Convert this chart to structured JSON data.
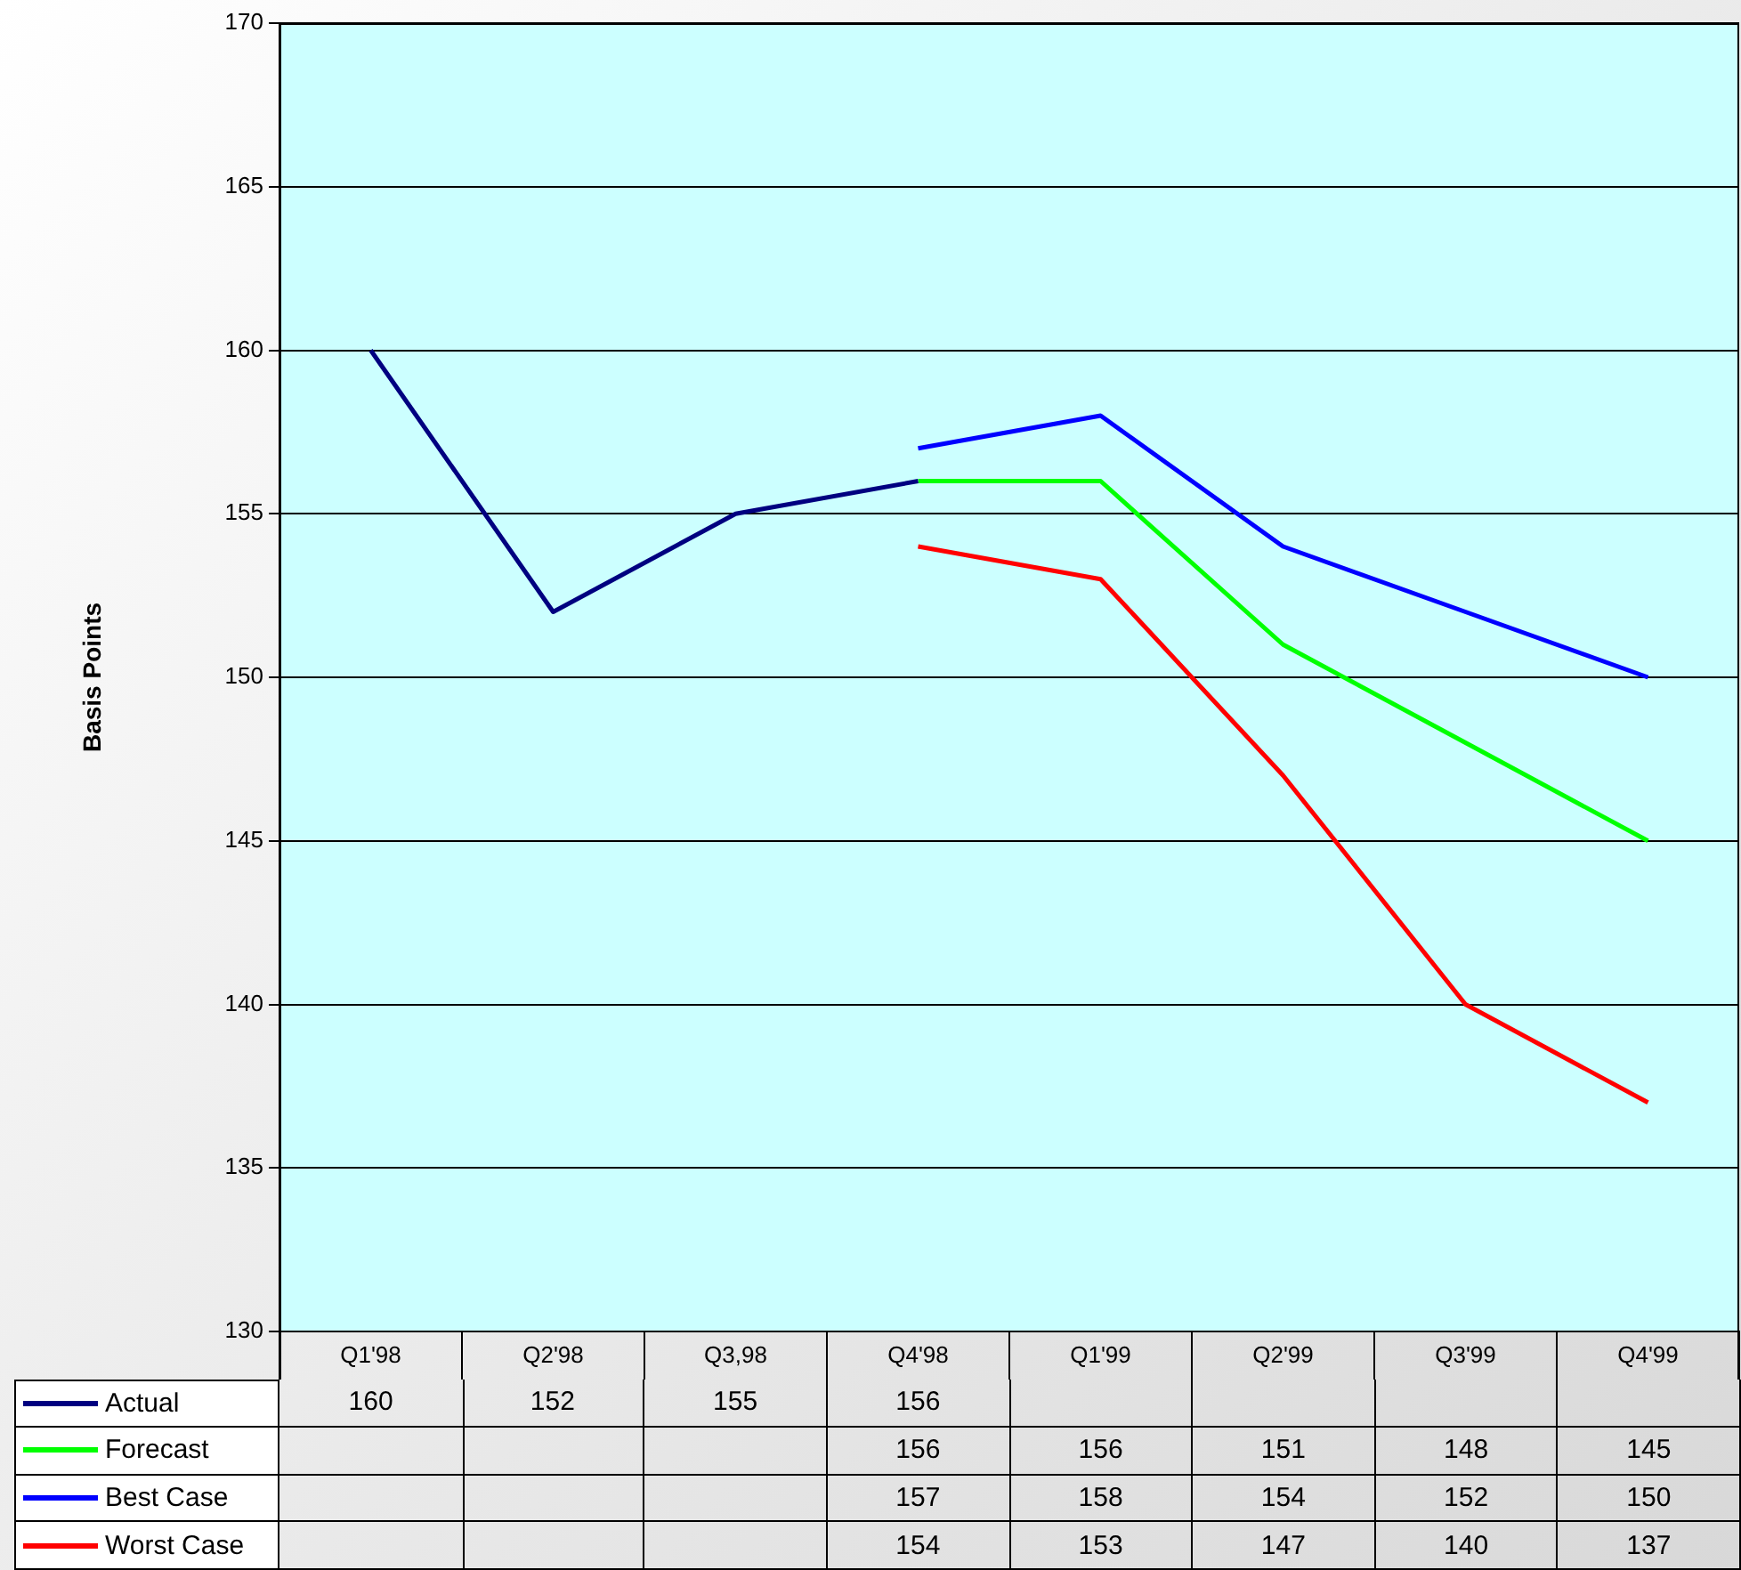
{
  "chart_data": {
    "type": "line",
    "ylabel": "Basis Points",
    "categories": [
      "Q1'98",
      "Q2'98",
      "Q3,98",
      "Q4'98",
      "Q1'99",
      "Q2'99",
      "Q3'99",
      "Q4'99"
    ],
    "series": [
      {
        "name": "Actual",
        "color": "#000080",
        "values": [
          160,
          152,
          155,
          156,
          null,
          null,
          null,
          null
        ]
      },
      {
        "name": "Forecast",
        "color": "#00ff00",
        "values": [
          null,
          null,
          null,
          156,
          156,
          151,
          148,
          145
        ]
      },
      {
        "name": "Best Case",
        "color": "#0000ff",
        "values": [
          null,
          null,
          null,
          157,
          158,
          154,
          152,
          150
        ]
      },
      {
        "name": "Worst Case",
        "color": "#ff0000",
        "values": [
          null,
          null,
          null,
          154,
          153,
          147,
          140,
          137
        ]
      }
    ],
    "ylim": [
      130,
      170
    ],
    "yticks": [
      130,
      135,
      140,
      145,
      150,
      155,
      160,
      165,
      170
    ],
    "grid": "y",
    "legend": "bottom",
    "data_labels": true,
    "marker": "none",
    "line_style": "solid"
  }
}
